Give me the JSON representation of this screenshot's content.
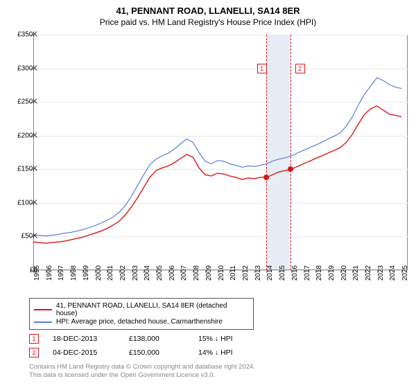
{
  "title": "41, PENNANT ROAD, LLANELLI, SA14 8ER",
  "subtitle": "Price paid vs. HM Land Registry's House Price Index (HPI)",
  "chart": {
    "type": "line",
    "background_color": "#ffffff",
    "grid_color": "#e8e8e8",
    "axis_color": "#888888",
    "highlight_band": {
      "x_start": 2013.96,
      "x_end": 2015.93,
      "color": "#e8ecf5"
    },
    "xlim": [
      1995,
      2025.5
    ],
    "ylim": [
      0,
      350000
    ],
    "yticks": [
      0,
      50000,
      100000,
      150000,
      200000,
      250000,
      300000,
      350000
    ],
    "ytick_labels": [
      "£0",
      "£50K",
      "£100K",
      "£150K",
      "£200K",
      "£250K",
      "£300K",
      "£350K"
    ],
    "xticks": [
      1995,
      1996,
      1997,
      1998,
      1999,
      2000,
      2001,
      2002,
      2003,
      2004,
      2005,
      2006,
      2007,
      2008,
      2009,
      2010,
      2011,
      2012,
      2013,
      2014,
      2015,
      2016,
      2017,
      2018,
      2019,
      2020,
      2021,
      2022,
      2023,
      2024,
      2025
    ],
    "series": [
      {
        "name": "41, PENNANT ROAD, LLANELLI, SA14 8ER (detached house)",
        "color": "#e01414",
        "line_width": 1.4,
        "data": [
          [
            1995,
            42000
          ],
          [
            1995.5,
            41000
          ],
          [
            1996,
            40000
          ],
          [
            1996.5,
            41000
          ],
          [
            1997,
            42000
          ],
          [
            1997.5,
            43000
          ],
          [
            1998,
            45000
          ],
          [
            1998.5,
            47000
          ],
          [
            1999,
            49000
          ],
          [
            1999.5,
            52000
          ],
          [
            2000,
            55000
          ],
          [
            2000.5,
            58000
          ],
          [
            2001,
            62000
          ],
          [
            2001.5,
            67000
          ],
          [
            2002,
            73000
          ],
          [
            2002.5,
            82000
          ],
          [
            2003,
            94000
          ],
          [
            2003.5,
            108000
          ],
          [
            2004,
            123000
          ],
          [
            2004.5,
            138000
          ],
          [
            2005,
            148000
          ],
          [
            2005.5,
            152000
          ],
          [
            2006,
            155000
          ],
          [
            2006.5,
            160000
          ],
          [
            2007,
            166000
          ],
          [
            2007.5,
            172000
          ],
          [
            2008,
            168000
          ],
          [
            2008.5,
            152000
          ],
          [
            2009,
            142000
          ],
          [
            2009.5,
            140000
          ],
          [
            2010,
            144000
          ],
          [
            2010.5,
            143000
          ],
          [
            2011,
            140000
          ],
          [
            2011.5,
            138000
          ],
          [
            2012,
            135000
          ],
          [
            2012.5,
            137000
          ],
          [
            2013,
            136000
          ],
          [
            2013.5,
            138000
          ],
          [
            2014,
            138000
          ],
          [
            2014.5,
            142000
          ],
          [
            2015,
            146000
          ],
          [
            2015.5,
            148000
          ],
          [
            2016,
            150000
          ],
          [
            2016.5,
            154000
          ],
          [
            2017,
            158000
          ],
          [
            2017.5,
            162000
          ],
          [
            2018,
            166000
          ],
          [
            2018.5,
            170000
          ],
          [
            2019,
            174000
          ],
          [
            2019.5,
            178000
          ],
          [
            2020,
            182000
          ],
          [
            2020.5,
            190000
          ],
          [
            2021,
            202000
          ],
          [
            2021.5,
            218000
          ],
          [
            2022,
            232000
          ],
          [
            2022.5,
            240000
          ],
          [
            2023,
            244000
          ],
          [
            2023.5,
            238000
          ],
          [
            2024,
            232000
          ],
          [
            2024.5,
            230000
          ],
          [
            2025,
            228000
          ]
        ]
      },
      {
        "name": "HPI: Average price, detached house, Carmarthenshire",
        "color": "#5a7fd6",
        "line_width": 1.2,
        "data": [
          [
            1995,
            52000
          ],
          [
            1995.5,
            52000
          ],
          [
            1996,
            51000
          ],
          [
            1996.5,
            52000
          ],
          [
            1997,
            53000
          ],
          [
            1997.5,
            55000
          ],
          [
            1998,
            56000
          ],
          [
            1998.5,
            58000
          ],
          [
            1999,
            60000
          ],
          [
            1999.5,
            63000
          ],
          [
            2000,
            66000
          ],
          [
            2000.5,
            70000
          ],
          [
            2001,
            74000
          ],
          [
            2001.5,
            79000
          ],
          [
            2002,
            86000
          ],
          [
            2002.5,
            96000
          ],
          [
            2003,
            110000
          ],
          [
            2003.5,
            126000
          ],
          [
            2004,
            142000
          ],
          [
            2004.5,
            157000
          ],
          [
            2005,
            165000
          ],
          [
            2005.5,
            170000
          ],
          [
            2006,
            174000
          ],
          [
            2006.5,
            180000
          ],
          [
            2007,
            188000
          ],
          [
            2007.5,
            195000
          ],
          [
            2008,
            190000
          ],
          [
            2008.5,
            175000
          ],
          [
            2009,
            162000
          ],
          [
            2009.5,
            158000
          ],
          [
            2010,
            163000
          ],
          [
            2010.5,
            162000
          ],
          [
            2011,
            158000
          ],
          [
            2011.5,
            156000
          ],
          [
            2012,
            153000
          ],
          [
            2012.5,
            155000
          ],
          [
            2013,
            154000
          ],
          [
            2013.5,
            156000
          ],
          [
            2014,
            158000
          ],
          [
            2014.5,
            162000
          ],
          [
            2015,
            165000
          ],
          [
            2015.5,
            167000
          ],
          [
            2016,
            170000
          ],
          [
            2016.5,
            174000
          ],
          [
            2017,
            178000
          ],
          [
            2017.5,
            182000
          ],
          [
            2018,
            186000
          ],
          [
            2018.5,
            190000
          ],
          [
            2019,
            195000
          ],
          [
            2019.5,
            199000
          ],
          [
            2020,
            204000
          ],
          [
            2020.5,
            214000
          ],
          [
            2021,
            228000
          ],
          [
            2021.5,
            246000
          ],
          [
            2022,
            262000
          ],
          [
            2022.5,
            274000
          ],
          [
            2023,
            286000
          ],
          [
            2023.5,
            282000
          ],
          [
            2024,
            276000
          ],
          [
            2024.5,
            272000
          ],
          [
            2025,
            270000
          ]
        ]
      }
    ],
    "sale_markers": [
      {
        "n": "1",
        "x": 2013.96,
        "y": 138000,
        "color": "#e01414"
      },
      {
        "n": "2",
        "x": 2015.93,
        "y": 150000,
        "color": "#e01414"
      }
    ],
    "marker_box_top_y": 307000,
    "marker_box_gap_x": 0.9,
    "label_fontsize": 10,
    "title_fontsize": 13
  },
  "sales": [
    {
      "n": "1",
      "date": "18-DEC-2013",
      "price": "£138,000",
      "delta": "15% ↓ HPI",
      "color": "#e01414"
    },
    {
      "n": "2",
      "date": "04-DEC-2015",
      "price": "£150,000",
      "delta": "14% ↓ HPI",
      "color": "#e01414"
    }
  ],
  "licence_line1": "Contains HM Land Registry data © Crown copyright and database right 2024.",
  "licence_line2": "This data is licensed under the Open Government Licence v3.0."
}
